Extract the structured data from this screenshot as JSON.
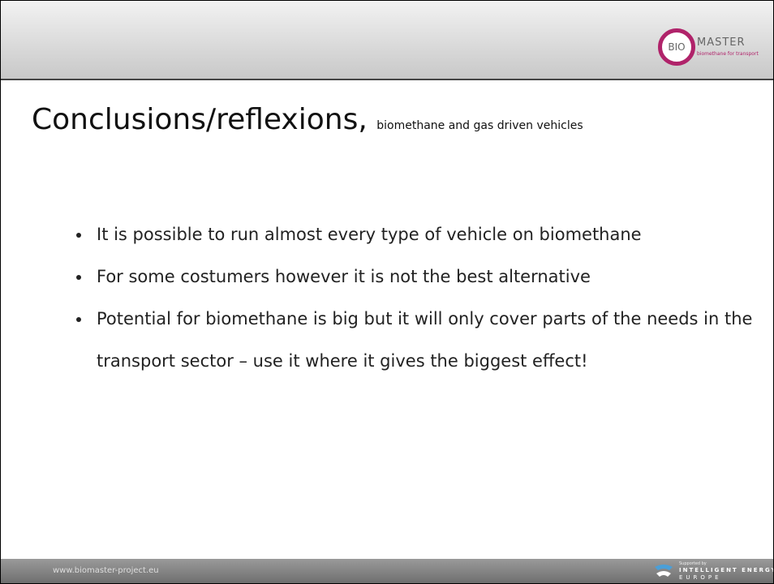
{
  "header": {
    "logo_text": "BIO",
    "logo_word": "MASTER",
    "logo_tagline": "biomethane for transport"
  },
  "title": "Conclusions/reflexions,",
  "subtitle": "biomethane and gas driven vehicles",
  "bullets": [
    "It is possible to run almost every type of vehicle on biomethane",
    "For some costumers however it is not the best alternative",
    "Potential for biomethane is big but it will only cover parts of the needs in the transport sector – use it where it gives the biggest effect!"
  ],
  "footer": {
    "url": "www.biomaster-project.eu",
    "supported_by": "Supported by",
    "program": "INTELLIGENT ENERGY",
    "program_region": "EUROPE"
  }
}
